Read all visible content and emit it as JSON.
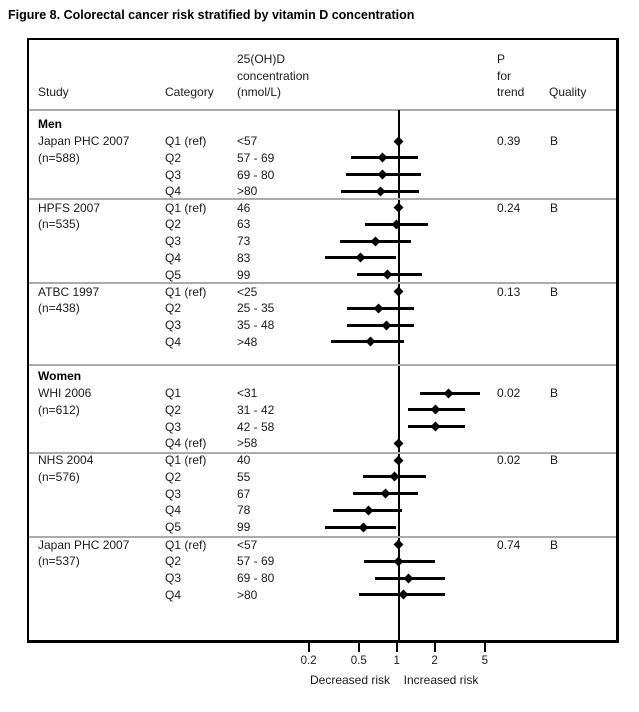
{
  "title": "Figure 8. Colorectal cancer risk stratified by vitamin D concentration",
  "columns": {
    "study": "Study",
    "category": "Category",
    "concentration_lines": [
      "25(OH)D",
      "concentration",
      "(nmol/L)"
    ],
    "p_trend_lines": [
      "P",
      "for",
      "trend"
    ],
    "quality": "Quality"
  },
  "axis": {
    "tick_labels": [
      "0.2",
      "0.5",
      "1",
      "2",
      "5"
    ],
    "tick_values": [
      0.2,
      0.5,
      1,
      2,
      5
    ],
    "reference_value": 1,
    "scale": "log",
    "decreased_label": "Decreased risk",
    "increased_label": "Increased risk"
  },
  "colors": {
    "marker": "#000000",
    "separator": "#ababab",
    "border": "#000000",
    "text": "#1a1a1a"
  },
  "chart_data": {
    "type": "forest",
    "title": "Figure 8. Colorectal cancer risk stratified by vitamin D concentration",
    "x_scale": "log",
    "x_ticks": [
      0.2,
      0.5,
      1,
      2,
      5
    ],
    "reference_line": 1,
    "sections": [
      {
        "group": "Men",
        "study": "Japan PHC 2007",
        "n_label": "(n=588)",
        "p_trend": "0.39",
        "quality": "B",
        "rows": [
          {
            "category": "Q1 (ref)",
            "conc": "<57",
            "rr": 1.0,
            "lo": null,
            "hi": null
          },
          {
            "category": "Q2",
            "conc": "57 - 69",
            "rr": 0.75,
            "lo": 0.42,
            "hi": 1.42
          },
          {
            "category": "Q3",
            "conc": "69 - 80",
            "rr": 0.75,
            "lo": 0.38,
            "hi": 1.51
          },
          {
            "category": "Q4",
            "conc": ">80",
            "rr": 0.72,
            "lo": 0.35,
            "hi": 1.44
          }
        ]
      },
      {
        "group": null,
        "study": "HPFS 2007",
        "n_label": "(n=535)",
        "p_trend": "0.24",
        "quality": "B",
        "rows": [
          {
            "category": "Q1 (ref)",
            "conc": "46",
            "rr": 1.0,
            "lo": null,
            "hi": null
          },
          {
            "category": "Q2",
            "conc": "63",
            "rr": 0.96,
            "lo": 0.54,
            "hi": 1.71
          },
          {
            "category": "Q3",
            "conc": "73",
            "rr": 0.66,
            "lo": 0.34,
            "hi": 1.26
          },
          {
            "category": "Q4",
            "conc": "83",
            "rr": 0.5,
            "lo": 0.26,
            "hi": 0.95
          },
          {
            "category": "Q5",
            "conc": "99",
            "rr": 0.82,
            "lo": 0.47,
            "hi": 1.53
          }
        ]
      },
      {
        "group": null,
        "study": "ATBC 1997",
        "n_label": "(n=438)",
        "p_trend": "0.13",
        "quality": "B",
        "rows": [
          {
            "category": "Q1 (ref)",
            "conc": "<25",
            "rr": 1.0,
            "lo": null,
            "hi": null
          },
          {
            "category": "Q2",
            "conc": "25 - 35",
            "rr": 0.69,
            "lo": 0.39,
            "hi": 1.32
          },
          {
            "category": "Q3",
            "conc": "35 - 48",
            "rr": 0.8,
            "lo": 0.39,
            "hi": 1.32
          },
          {
            "category": "Q4",
            "conc": ">48",
            "rr": 0.6,
            "lo": 0.29,
            "hi": 1.1
          }
        ]
      },
      {
        "group": "Women",
        "study": "WHI 2006",
        "n_label": "(n=612)",
        "p_trend": "0.02",
        "quality": "B",
        "rows": [
          {
            "category": "Q1",
            "conc": "<31",
            "rr": 2.5,
            "lo": 1.48,
            "hi": 4.4
          },
          {
            "category": "Q2",
            "conc": "31 - 42",
            "rr": 1.95,
            "lo": 1.18,
            "hi": 3.38
          },
          {
            "category": "Q3",
            "conc": "42 - 58",
            "rr": 1.95,
            "lo": 1.18,
            "hi": 3.38
          },
          {
            "category": "Q4 (ref)",
            "conc": ">58",
            "rr": 1.0,
            "lo": null,
            "hi": null
          }
        ]
      },
      {
        "group": null,
        "study": "NHS 2004",
        "n_label": "(n=576)",
        "p_trend": "0.02",
        "quality": "B",
        "rows": [
          {
            "category": "Q1 (ref)",
            "conc": "40",
            "rr": 1.0,
            "lo": null,
            "hi": null
          },
          {
            "category": "Q2",
            "conc": "55",
            "rr": 0.93,
            "lo": 0.52,
            "hi": 1.65
          },
          {
            "category": "Q3",
            "conc": "67",
            "rr": 0.78,
            "lo": 0.43,
            "hi": 1.42
          },
          {
            "category": "Q4",
            "conc": "78",
            "rr": 0.58,
            "lo": 0.3,
            "hi": 1.06
          },
          {
            "category": "Q5",
            "conc": "99",
            "rr": 0.53,
            "lo": 0.26,
            "hi": 0.96
          }
        ]
      },
      {
        "group": null,
        "study": "Japan PHC 2007",
        "n_label": "(n=537)",
        "p_trend": "0.74",
        "quality": "B",
        "rows": [
          {
            "category": "Q1 (ref)",
            "conc": "<57",
            "rr": 1.0,
            "lo": null,
            "hi": null
          },
          {
            "category": "Q2",
            "conc": "57 - 69",
            "rr": 1.0,
            "lo": 0.53,
            "hi": 1.95
          },
          {
            "category": "Q3",
            "conc": "69 - 80",
            "rr": 1.19,
            "lo": 0.65,
            "hi": 2.32
          },
          {
            "category": "Q4",
            "conc": ">80",
            "rr": 1.1,
            "lo": 0.48,
            "hi": 2.32
          }
        ]
      }
    ]
  }
}
